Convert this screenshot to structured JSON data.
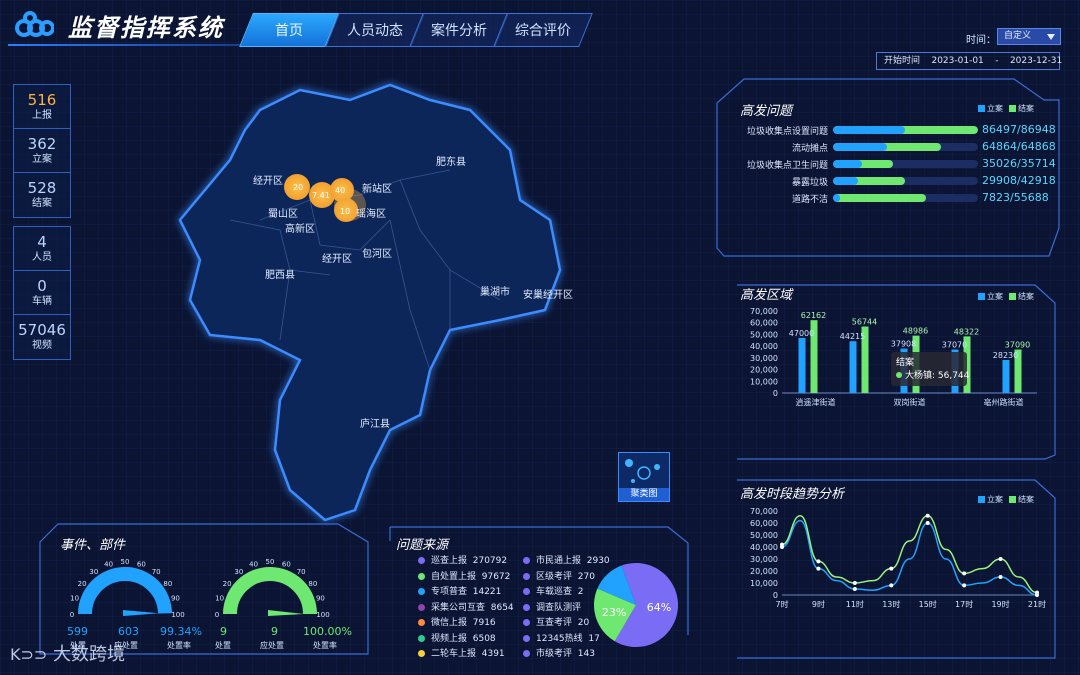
{
  "header": {
    "title": "监督指挥系统",
    "tabs": [
      {
        "label": "首页",
        "active": true
      },
      {
        "label": "人员动态",
        "active": false
      },
      {
        "label": "案件分析",
        "active": false
      },
      {
        "label": "综合评价",
        "active": false
      }
    ],
    "time_label": "时间：",
    "time_select": "自定义",
    "date_label": "开始时间",
    "date_start": "2023-01-01",
    "date_sep": "-",
    "date_end": "2023-12-31"
  },
  "stats_top": [
    {
      "value": "516",
      "label": "上报",
      "color": "#ffb340"
    },
    {
      "value": "362",
      "label": "立案"
    },
    {
      "value": "528",
      "label": "结案"
    }
  ],
  "stats_bottom": [
    {
      "value": "4",
      "label": "人员"
    },
    {
      "value": "0",
      "label": "车辆"
    },
    {
      "value": "57046",
      "label": "视频"
    }
  ],
  "map": {
    "labels": [
      "肥东县",
      "经开区",
      "新站区",
      "蜀山区",
      "高新区",
      "瑶海区",
      "经开区",
      "包河区",
      "肥西县",
      "巢湖市",
      "安巢经开区",
      "庐江县"
    ],
    "cluster_values": [
      "20",
      "7.41",
      "40",
      "10"
    ],
    "cluster_button": "聚类图"
  },
  "issues": {
    "title": "高发问题",
    "legend": [
      "立案",
      "结案"
    ],
    "items": [
      {
        "name": "垃圾收集点设置问题",
        "value": "86497/86948",
        "case": 86497,
        "close": 86948
      },
      {
        "name": "流动摊点",
        "value": "64864/64868",
        "case": 64864,
        "close": 64868
      },
      {
        "name": "垃圾收集点卫生问题",
        "value": "35026/35714",
        "case": 35026,
        "close": 35714
      },
      {
        "name": "暴露垃圾",
        "value": "29908/42918",
        "case": 29908,
        "close": 42918
      },
      {
        "name": "道路不洁",
        "value": "7823/55688",
        "case": 7823,
        "close": 55688
      }
    ],
    "max": 86948
  },
  "region_chart": {
    "title": "高发区域",
    "legend": [
      "立案",
      "结案"
    ],
    "chart_data": {
      "type": "bar",
      "categories": [
        "逍遥津街道",
        "",
        "双岗街道",
        "",
        "亳州路街道"
      ],
      "series": [
        {
          "name": "立案",
          "values": [
            47000,
            44215,
            37908,
            37070,
            28230
          ]
        },
        {
          "name": "结案",
          "values": [
            62162,
            56744,
            48986,
            48322,
            37090
          ]
        }
      ],
      "data_labels_case": [
        "47000",
        "44215",
        "37908",
        "37070",
        "28230"
      ],
      "data_labels_close": [
        "62162",
        "56744",
        "48986",
        "48322",
        "37090"
      ],
      "ylim": [
        0,
        70000
      ],
      "yticks": [
        "0",
        "10,000",
        "20,000",
        "30,000",
        "40,000",
        "50,000",
        "60,000",
        "70,000"
      ]
    },
    "tooltip_title": "结案",
    "tooltip_text": "大杨镇: 56,744"
  },
  "trend_chart": {
    "title": "高发时段趋势分析",
    "legend": [
      "立案",
      "结案"
    ],
    "chart_data": {
      "type": "line",
      "x": [
        "7时",
        "8时",
        "9时",
        "10时",
        "11时",
        "12时",
        "13时",
        "14时",
        "15时",
        "16时",
        "17时",
        "18时",
        "19时",
        "20时",
        "21时"
      ],
      "xticks": [
        "7时",
        "9时",
        "11时",
        "13时",
        "15时",
        "17时",
        "19时",
        "21时"
      ],
      "series": [
        {
          "name": "立案",
          "values": [
            40000,
            62000,
            22000,
            12000,
            5000,
            4000,
            8000,
            30000,
            60000,
            30000,
            8000,
            10000,
            15000,
            8000,
            0
          ]
        },
        {
          "name": "结案",
          "values": [
            42000,
            66000,
            28000,
            15000,
            10000,
            12000,
            22000,
            45000,
            66000,
            38000,
            18000,
            22000,
            30000,
            15000,
            2000
          ]
        }
      ],
      "ylim": [
        0,
        70000
      ],
      "yticks": [
        "0",
        "10,000",
        "20,000",
        "30,000",
        "40,000",
        "50,000",
        "60,000",
        "70,000"
      ]
    }
  },
  "gauges": {
    "title": "事件、部件",
    "ticks": [
      "0",
      "10",
      "20",
      "30",
      "40",
      "50",
      "60",
      "70",
      "80",
      "90",
      "100"
    ],
    "left": {
      "value_pct": 99.34,
      "stats": [
        {
          "value": "599",
          "label": "处置"
        },
        {
          "value": "603",
          "label": "应处置"
        },
        {
          "value": "99.34%",
          "label": "处置率"
        }
      ]
    },
    "right": {
      "value_pct": 100.0,
      "stats": [
        {
          "value": "9",
          "label": "处置"
        },
        {
          "value": "9",
          "label": "应处置"
        },
        {
          "value": "100.00%",
          "label": "处置率"
        }
      ]
    }
  },
  "sources": {
    "title": "问题来源",
    "left": [
      {
        "name": "巡查上报",
        "value": "270792",
        "color": "#7b6cf6"
      },
      {
        "name": "自处置上报",
        "value": "97672",
        "color": "#6ee870"
      },
      {
        "name": "专项普查",
        "value": "14221",
        "color": "#21a2ff"
      },
      {
        "name": "采集公司互查",
        "value": "8654",
        "color": "#8e44ad"
      },
      {
        "name": "微信上报",
        "value": "7916",
        "color": "#ff8a3d"
      },
      {
        "name": "视频上报",
        "value": "6508",
        "color": "#2ecc8f"
      },
      {
        "name": "二轮车上报",
        "value": "4391",
        "color": "#f5d142"
      }
    ],
    "right": [
      {
        "name": "市民通上报",
        "value": "2930",
        "color": "#7b6cf6"
      },
      {
        "name": "区级考评",
        "value": "270",
        "color": "#7b6cf6"
      },
      {
        "name": "车载巡查",
        "value": "2",
        "color": "#7b6cf6"
      },
      {
        "name": "调查队测评",
        "value": "",
        "color": "#7b6cf6"
      },
      {
        "name": "互查考评",
        "value": "20",
        "color": "#7b6cf6"
      },
      {
        "name": "12345热线",
        "value": "17",
        "color": "#7b6cf6"
      },
      {
        "name": "市级考评",
        "value": "143",
        "color": "#7b6cf6"
      }
    ],
    "pie": {
      "type": "pie",
      "slices": [
        {
          "name": "巡查上报",
          "pct": 64,
          "label": "64%",
          "color": "#7b6cf6"
        },
        {
          "name": "自处置上报",
          "pct": 23,
          "label": "23%",
          "color": "#6ee870"
        },
        {
          "name": "other",
          "pct": 13,
          "label": "",
          "color": "#21a2ff"
        }
      ]
    }
  },
  "watermark": "大数跨境"
}
